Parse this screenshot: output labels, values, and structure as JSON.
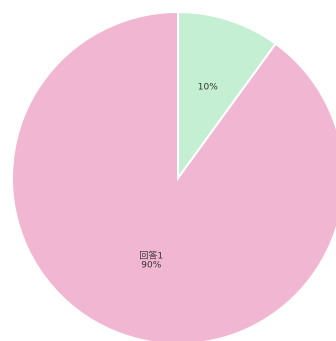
{
  "chart_data": {
    "type": "pie",
    "slices": [
      {
        "name": "回答1",
        "value": 90,
        "label_lines": [
          "回答1",
          "90%"
        ],
        "color": "#f0b6d2"
      },
      {
        "name": "",
        "value": 10,
        "label_lines": [
          "10%"
        ],
        "color": "#c4efd3"
      }
    ],
    "title": "",
    "legend": "none",
    "start_angle": "top",
    "direction": "counterclockwise",
    "slice_border_color": "#ffffff"
  }
}
